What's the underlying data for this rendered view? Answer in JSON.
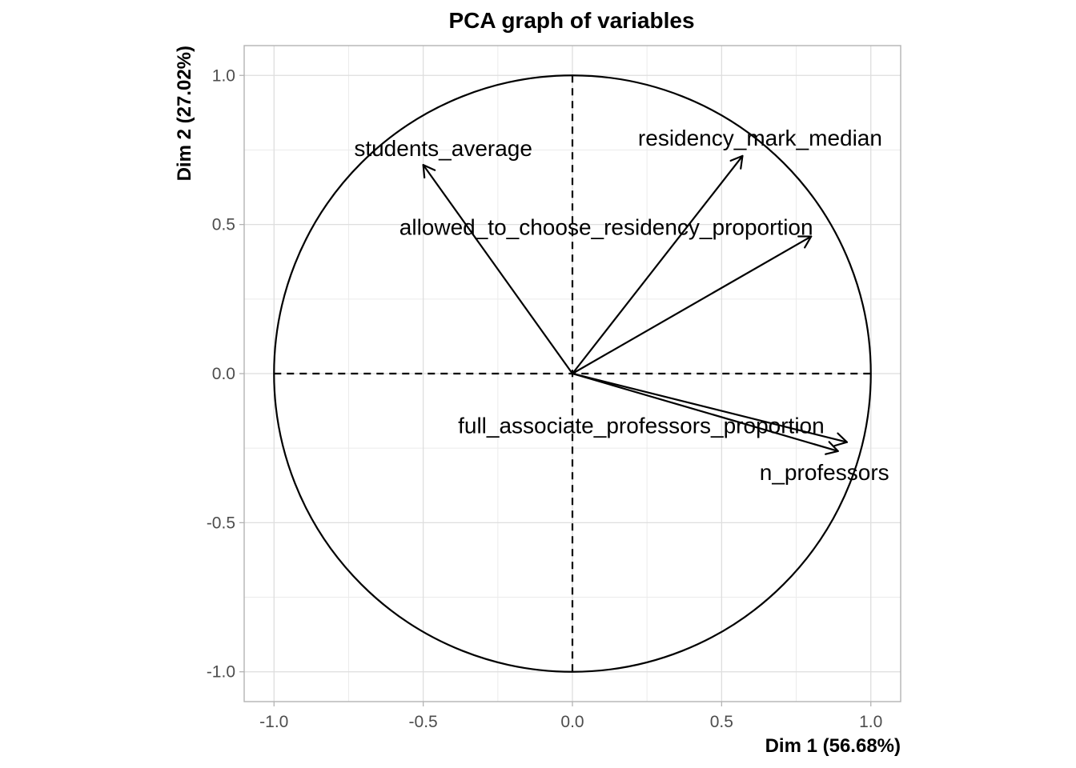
{
  "chart_data": {
    "type": "scatter",
    "subtype": "pca-correlation-circle",
    "title": "PCA graph of variables",
    "xlabel": "Dim 1 (56.68%)",
    "ylabel": "Dim 2 (27.02%)",
    "xlim": [
      -1.1,
      1.1
    ],
    "ylim": [
      -1.1,
      1.1
    ],
    "xticks": [
      -1.0,
      -0.5,
      0.0,
      0.5,
      1.0
    ],
    "yticks": [
      -1.0,
      -0.5,
      0.0,
      0.5,
      1.0
    ],
    "xtick_labels": [
      "-1.0",
      "-0.5",
      "0.0",
      "0.5",
      "1.0"
    ],
    "ytick_labels": [
      "-1.0",
      "-0.5",
      "0.0",
      "0.5",
      "1.0"
    ],
    "grid": true,
    "unit_circle": true,
    "reference_lines": "dashed at x=0 and y=0",
    "arrows": [
      {
        "label": "students_average",
        "x": -0.5,
        "y": 0.7
      },
      {
        "label": "residency_mark_median",
        "x": 0.57,
        "y": 0.73
      },
      {
        "label": "allowed_to_choose_residency_proportion",
        "x": 0.8,
        "y": 0.46
      },
      {
        "label": "full_associate_professors_proportion",
        "x": 0.92,
        "y": -0.23
      },
      {
        "label": "n_professors",
        "x": 0.89,
        "y": -0.26
      }
    ]
  }
}
